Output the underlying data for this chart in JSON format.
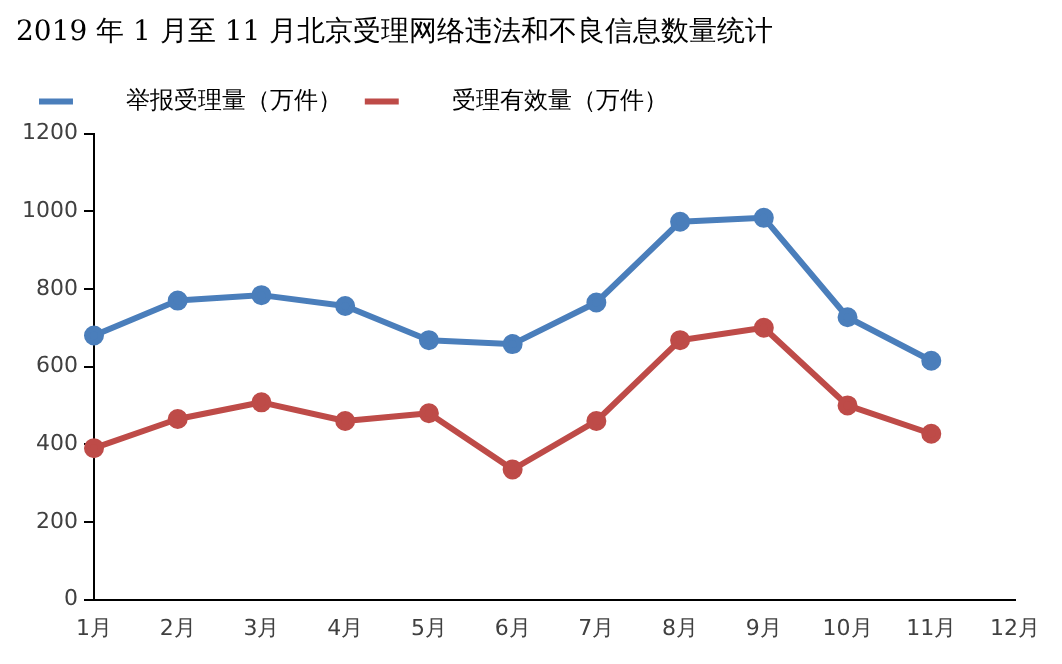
{
  "chart_data": {
    "type": "line",
    "title": "2019 年 1 月至 11 月北京受理网络违法和不良信息数量统计",
    "categories": [
      "1月",
      "2月",
      "3月",
      "4月",
      "5月",
      "6月",
      "7月",
      "8月",
      "9月",
      "10月",
      "11月",
      "12月"
    ],
    "series": [
      {
        "name": "举报受理量（万件）",
        "color": "#4a7ebb",
        "values": [
          680,
          770,
          784,
          756,
          668,
          658,
          765,
          973,
          983,
          727,
          615,
          null
        ]
      },
      {
        "name": "受理有效量（万件）",
        "color": "#be4b48",
        "values": [
          390,
          465,
          508,
          460,
          480,
          335,
          460,
          668,
          700,
          500,
          427,
          null
        ]
      }
    ],
    "ylim": [
      0,
      1200
    ],
    "yticks": [
      0,
      200,
      400,
      600,
      800,
      1000,
      1200
    ],
    "grid": false,
    "legend": "top",
    "marker": "circle",
    "line_style": "solid"
  }
}
